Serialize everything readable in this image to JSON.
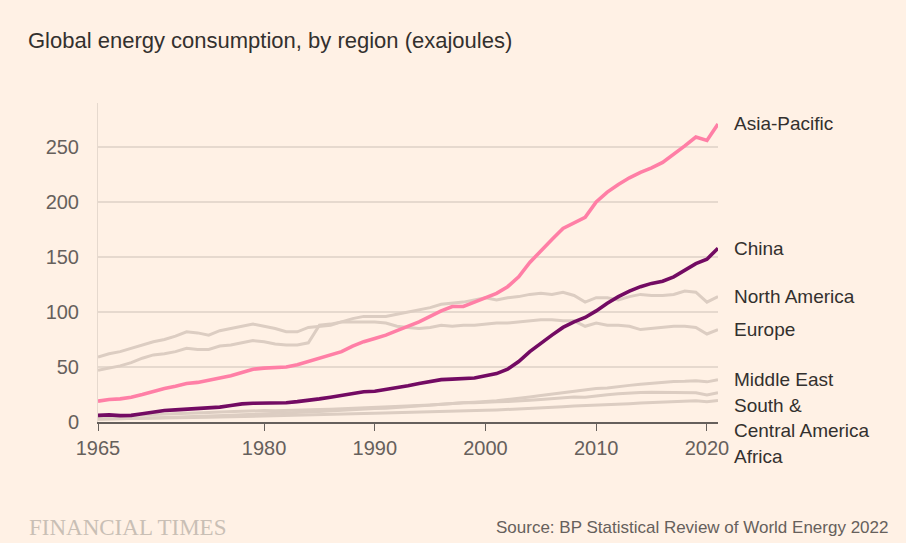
{
  "chart_data": {
    "type": "line",
    "title": "Global energy consumption, by region (exajoules)",
    "source": "Source: BP Statistical Review of World Energy 2022",
    "branding": "FINANCIAL TIMES",
    "x": [
      1965,
      1966,
      1967,
      1968,
      1969,
      1970,
      1971,
      1972,
      1973,
      1974,
      1975,
      1976,
      1977,
      1978,
      1979,
      1980,
      1981,
      1982,
      1983,
      1984,
      1985,
      1986,
      1987,
      1988,
      1989,
      1990,
      1991,
      1992,
      1993,
      1994,
      1995,
      1996,
      1997,
      1998,
      1999,
      2000,
      2001,
      2002,
      2003,
      2004,
      2005,
      2006,
      2007,
      2008,
      2009,
      2010,
      2011,
      2012,
      2013,
      2014,
      2015,
      2016,
      2017,
      2018,
      2019,
      2020,
      2021
    ],
    "xlim": [
      1965,
      2021
    ],
    "xticks": [
      1965,
      1980,
      1990,
      2000,
      2010,
      2020
    ],
    "ylim": [
      0,
      290
    ],
    "yticks": [
      0,
      50,
      100,
      150,
      200,
      250
    ],
    "grid": true,
    "series": [
      {
        "name": "Asia-Pacific",
        "color": "#ff7fa6",
        "values": [
          19,
          20.5,
          21,
          22.5,
          25,
          28,
          30.5,
          32.5,
          35,
          36,
          38,
          40,
          42,
          45,
          48,
          49,
          49.5,
          50,
          52,
          55,
          58,
          61,
          64,
          69,
          73,
          76,
          79,
          83,
          87,
          91,
          96,
          101,
          105,
          105,
          109,
          113,
          117,
          123,
          132,
          145,
          156,
          166,
          176,
          181,
          186,
          200,
          209,
          216,
          222,
          227,
          231,
          236,
          243,
          251,
          259,
          256,
          271
        ]
      },
      {
        "name": "China",
        "color": "#730b63",
        "values": [
          6,
          6.5,
          5.8,
          6,
          7.5,
          9,
          10.5,
          11,
          11.5,
          12,
          13,
          13.5,
          15,
          16.5,
          17,
          17,
          17,
          17.5,
          18.5,
          19.5,
          21,
          22.5,
          24,
          26,
          27.5,
          28,
          29.5,
          31,
          33,
          35,
          37,
          38.5,
          39,
          39.5,
          40,
          42,
          44,
          48,
          55,
          64,
          72,
          79,
          86,
          91,
          95,
          101,
          108,
          114,
          119,
          123,
          126,
          128,
          132,
          138,
          144,
          148,
          158
        ]
      },
      {
        "name": "North America",
        "color": "#dccdc2",
        "values": [
          59,
          62,
          64,
          67,
          70,
          73,
          75,
          78,
          82,
          81,
          79,
          83,
          85,
          87,
          89,
          87,
          85,
          82,
          82,
          86,
          87,
          88,
          91,
          94,
          96,
          96,
          96,
          98,
          100,
          102,
          104,
          107,
          108,
          109,
          111,
          113,
          111,
          113,
          114,
          116,
          117,
          116,
          118,
          115,
          109,
          113,
          113,
          111,
          114,
          116,
          115,
          115,
          116,
          119,
          118,
          109,
          114
        ]
      },
      {
        "name": "Europe",
        "color": "#dccdc2",
        "values": [
          47,
          49,
          51,
          54,
          58,
          61,
          62,
          64,
          67,
          66,
          66,
          69,
          70,
          72,
          74,
          73,
          71,
          70,
          70,
          72,
          88,
          89,
          91,
          91,
          91,
          91,
          90,
          87,
          86,
          85,
          86,
          88,
          87,
          88,
          88,
          89,
          90,
          90,
          91,
          92,
          93,
          93,
          92,
          92,
          87,
          90,
          88,
          88,
          87,
          84,
          85,
          86,
          87,
          87,
          86,
          80,
          84
        ]
      },
      {
        "name": "Middle East",
        "color": "#dccdc2",
        "values": [
          2.5,
          2.7,
          2.9,
          3.1,
          3.4,
          3.7,
          4,
          4.4,
          4.8,
          5,
          5.3,
          5.8,
          6.2,
          6.6,
          7,
          6.8,
          7.2,
          7.8,
          8.4,
          9,
          9.6,
          10.2,
          10.8,
          11.4,
          11.8,
          12.2,
          12.4,
          13.2,
          14,
          14.8,
          15.5,
          16.2,
          17,
          17.5,
          18,
          18.6,
          19.4,
          20.5,
          21.4,
          22.8,
          24,
          25.3,
          26.2,
          27.6,
          29,
          30.5,
          31,
          32.4,
          33.3,
          34.3,
          35.3,
          36,
          36.8,
          37,
          37.5,
          36.5,
          38.5
        ]
      },
      {
        "name": "South & Central America",
        "color": "#dccdc2",
        "values": [
          5,
          5.3,
          5.6,
          5.9,
          6.2,
          6.6,
          7,
          7.4,
          7.9,
          8.3,
          8.6,
          9,
          9.4,
          9.8,
          10.2,
          10.4,
          10.3,
          10.4,
          10.5,
          10.9,
          11.3,
          11.7,
          12.1,
          12.5,
          12.7,
          12.8,
          13.2,
          13.6,
          14.1,
          14.8,
          15.4,
          16.1,
          16.9,
          17.4,
          17.6,
          18.2,
          18.4,
          18.6,
          18.9,
          19.8,
          20.5,
          21.3,
          22.2,
          22.8,
          22.6,
          24,
          24.8,
          25.6,
          26.4,
          26.9,
          27,
          26.8,
          26.9,
          26.6,
          26.5,
          24.6,
          26.6
        ]
      },
      {
        "name": "Africa",
        "color": "#dccdc2",
        "values": [
          2.7,
          2.8,
          2.9,
          3,
          3.1,
          3.3,
          3.5,
          3.7,
          3.9,
          4.1,
          4.3,
          4.5,
          4.8,
          5,
          5.3,
          5.5,
          5.9,
          6.2,
          6.4,
          6.6,
          6.9,
          7.1,
          7.3,
          7.6,
          7.8,
          8,
          8.2,
          8.4,
          8.6,
          8.8,
          9.1,
          9.4,
          9.7,
          10,
          10.2,
          10.6,
          10.9,
          11.3,
          11.9,
          12.6,
          13,
          13.3,
          13.8,
          14.5,
          14.8,
          15.4,
          15.5,
          16.2,
          16.6,
          17.2,
          17.6,
          18,
          18.6,
          19.1,
          19.4,
          18.4,
          19.5
        ]
      }
    ]
  }
}
